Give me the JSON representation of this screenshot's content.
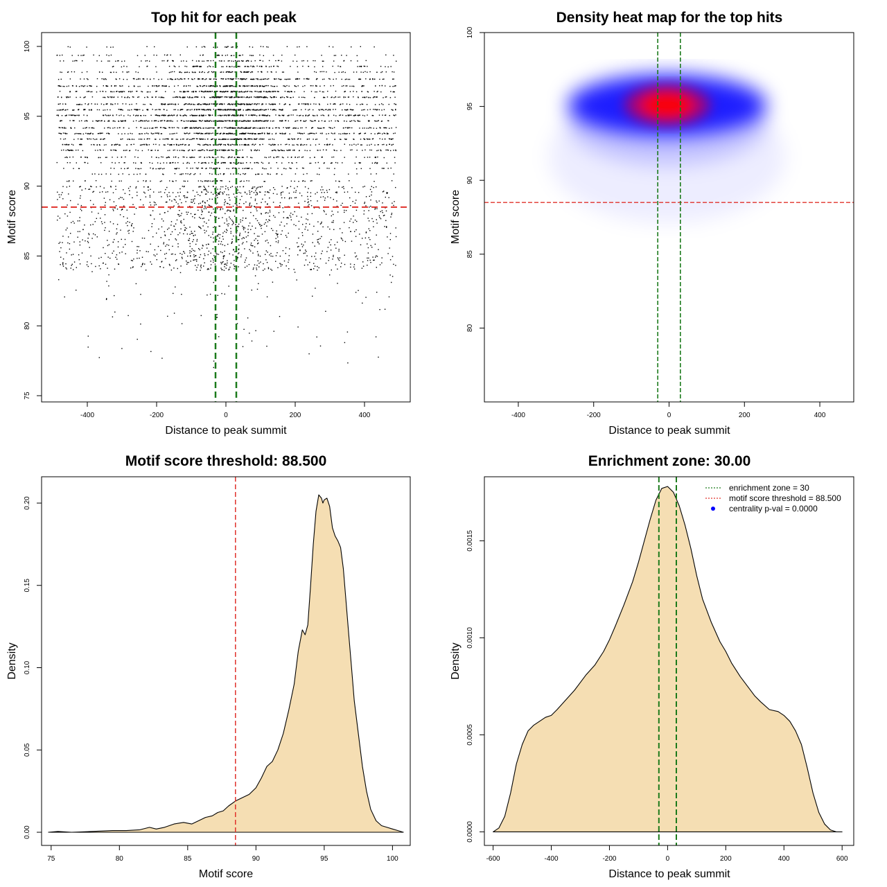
{
  "colors": {
    "threshold_line": "#e0302a",
    "zone_line": "#1b7a1b",
    "density_fill": "#f5deb3",
    "heat_low": "#ffffff",
    "heat_mid": "#0000ff",
    "heat_high": "#ff0000",
    "legend_point": "#0000ff"
  },
  "chart_data": [
    {
      "id": "scatter",
      "type": "scatter",
      "title": "Top hit for each peak",
      "xlabel": "Distance to peak summit",
      "ylabel": "Motif score",
      "xlim": [
        -500,
        500
      ],
      "ylim": [
        75,
        100
      ],
      "xticks": [
        -400,
        -200,
        0,
        200,
        400
      ],
      "yticks": [
        75,
        80,
        85,
        90,
        95,
        100
      ],
      "xtick_labels": [
        "-400",
        "-200",
        "0",
        "200",
        "400"
      ],
      "ytick_labels": [
        "75",
        "80",
        "85",
        "90",
        "95",
        "100"
      ],
      "threshold": 88.5,
      "enrichment_zone": [
        -30,
        30
      ],
      "point_distribution": {
        "n_points": 5200,
        "score_rows": [
          100,
          99.4,
          99,
          98.6,
          98.2,
          97.7,
          97.2,
          96.8,
          96.4,
          95.9,
          95.5,
          95.1,
          94.7,
          94.2,
          93.8,
          93.4,
          93,
          92.6,
          92.1,
          91.7,
          91.3,
          90.9,
          90.4,
          90,
          89.6
        ],
        "x_range": [
          -490,
          490
        ],
        "note_score_mode": 95.3
      }
    },
    {
      "id": "heatmap",
      "type": "heatmap",
      "title": "Density heat map for the top hits",
      "xlabel": "Distance to peak summit",
      "ylabel": "Motif score",
      "xlim": [
        -490,
        490
      ],
      "ylim": [
        75,
        100
      ],
      "xticks": [
        -400,
        -200,
        0,
        200,
        400
      ],
      "yticks": [
        80,
        85,
        90,
        95,
        100
      ],
      "xtick_labels": [
        "-400",
        "-200",
        "0",
        "200",
        "400"
      ],
      "ytick_labels": [
        "80",
        "85",
        "90",
        "95",
        "100"
      ],
      "threshold": 88.5,
      "enrichment_zone": [
        -30,
        30
      ],
      "density_peak": {
        "x": -5,
        "y": 95.1
      },
      "density_spread": {
        "x_broad": 330,
        "x_core": 120,
        "y_core": 1.1,
        "y_tail": 4.5
      }
    },
    {
      "id": "score-density",
      "type": "area",
      "title": "Motif score threshold: 88.500",
      "xlabel": "Motif score",
      "ylabel": "Density",
      "xlim": [
        74.3,
        101.3
      ],
      "ylim": [
        -0.008,
        0.216
      ],
      "xticks": [
        75,
        80,
        85,
        90,
        95,
        100
      ],
      "yticks": [
        0.0,
        0.05,
        0.1,
        0.15,
        0.2
      ],
      "xtick_labels": [
        "75",
        "80",
        "85",
        "90",
        "95",
        "100"
      ],
      "ytick_labels": [
        "0.00",
        "0.05",
        "0.10",
        "0.15",
        "0.20"
      ],
      "threshold": 88.5,
      "x": [
        74.8,
        75.5,
        76.5,
        78,
        79.5,
        80.5,
        81.5,
        82.2,
        82.7,
        83.3,
        84,
        84.7,
        85.3,
        85.8,
        86.3,
        86.8,
        87.2,
        87.6,
        88,
        88.5,
        89,
        89.5,
        90,
        90.4,
        90.8,
        91.2,
        91.6,
        92,
        92.4,
        92.8,
        93.1,
        93.4,
        93.6,
        93.8,
        94,
        94.2,
        94.4,
        94.6,
        94.8,
        94.9,
        95,
        95.2,
        95.4,
        95.6,
        95.8,
        96,
        96.2,
        96.4,
        96.6,
        96.8,
        97,
        97.2,
        97.5,
        97.8,
        98.1,
        98.4,
        98.8,
        99.2,
        99.6,
        100,
        100.4,
        100.8
      ],
      "y": [
        0.0,
        0.0005,
        0.0,
        0.0005,
        0.001,
        0.001,
        0.0015,
        0.003,
        0.002,
        0.003,
        0.005,
        0.006,
        0.005,
        0.007,
        0.009,
        0.01,
        0.012,
        0.013,
        0.016,
        0.019,
        0.021,
        0.023,
        0.027,
        0.033,
        0.04,
        0.043,
        0.05,
        0.06,
        0.074,
        0.09,
        0.11,
        0.123,
        0.12,
        0.126,
        0.15,
        0.175,
        0.195,
        0.205,
        0.203,
        0.2,
        0.202,
        0.203,
        0.198,
        0.185,
        0.18,
        0.177,
        0.173,
        0.16,
        0.14,
        0.12,
        0.1,
        0.08,
        0.06,
        0.04,
        0.025,
        0.014,
        0.007,
        0.004,
        0.003,
        0.002,
        0.001,
        0.0
      ]
    },
    {
      "id": "distance-density",
      "type": "area",
      "title": "Enrichment zone: 30.00",
      "xlabel": "Distance to peak summit",
      "ylabel": "Density",
      "xlim": [
        -630,
        640
      ],
      "ylim": [
        -7e-05,
        0.00183
      ],
      "xticks": [
        -600,
        -400,
        -200,
        0,
        200,
        400,
        600
      ],
      "yticks": [
        0.0,
        0.0005,
        0.001,
        0.0015
      ],
      "xtick_labels": [
        "-600",
        "-400",
        "-200",
        "0",
        "200",
        "400",
        "600"
      ],
      "ytick_labels": [
        "0.0000",
        "0.0005",
        "0.0010",
        "0.0015"
      ],
      "enrichment_zone": [
        -30,
        30
      ],
      "x": [
        -600,
        -580,
        -560,
        -540,
        -520,
        -500,
        -480,
        -460,
        -440,
        -420,
        -400,
        -380,
        -350,
        -320,
        -300,
        -280,
        -250,
        -220,
        -200,
        -180,
        -150,
        -120,
        -100,
        -80,
        -60,
        -40,
        -20,
        0,
        20,
        40,
        60,
        80,
        100,
        120,
        150,
        180,
        200,
        220,
        250,
        280,
        300,
        320,
        350,
        380,
        400,
        420,
        440,
        460,
        480,
        500,
        520,
        540,
        560,
        580,
        600
      ],
      "y": [
        0.0,
        2e-05,
        8e-05,
        0.0002,
        0.00035,
        0.00045,
        0.00052,
        0.00055,
        0.00057,
        0.00059,
        0.0006,
        0.00063,
        0.00068,
        0.00073,
        0.00077,
        0.00081,
        0.00086,
        0.00093,
        0.00099,
        0.00106,
        0.00117,
        0.00129,
        0.00139,
        0.0015,
        0.00161,
        0.00171,
        0.00177,
        0.00178,
        0.00175,
        0.00168,
        0.00158,
        0.00146,
        0.00132,
        0.0012,
        0.00108,
        0.00098,
        0.00093,
        0.00087,
        0.0008,
        0.00074,
        0.0007,
        0.00067,
        0.00063,
        0.00062,
        0.0006,
        0.00057,
        0.00052,
        0.00045,
        0.00033,
        0.0002,
        0.0001,
        4e-05,
        1e-05,
        0.0,
        0.0
      ],
      "legend": {
        "placement": "top-right",
        "entries": [
          {
            "label": "enrichment zone = 30",
            "symbol": "dotted-line",
            "color": "#1b7a1b"
          },
          {
            "label": "motif score threshold = 88.500",
            "symbol": "dotted-line",
            "color": "#e0302a"
          },
          {
            "label": "centrality p-val = 0.0000",
            "symbol": "point",
            "color": "#0000ff"
          }
        ]
      }
    }
  ]
}
